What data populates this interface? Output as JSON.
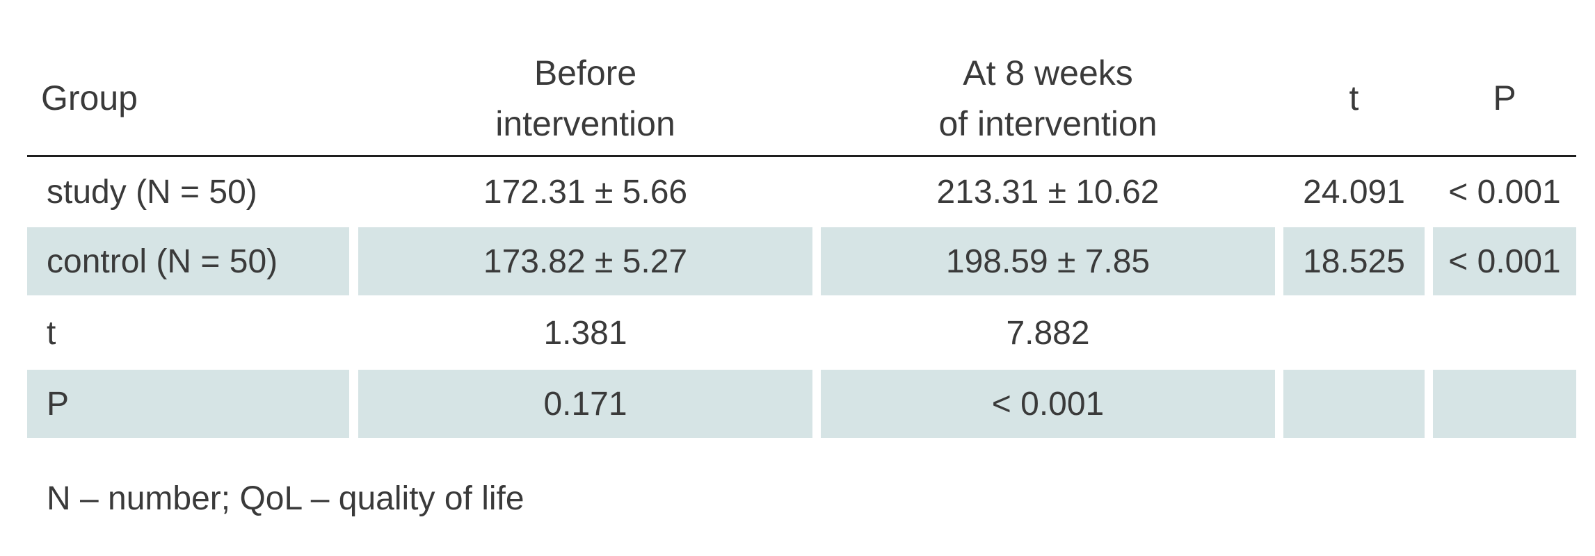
{
  "table": {
    "headers": {
      "group": "Group",
      "before_line1": "Before",
      "before_line2": "intervention",
      "at8_line1": "At 8 weeks",
      "at8_line2": "of intervention",
      "t": "t",
      "p": "P"
    },
    "rows": [
      {
        "group": "study (N = 50)",
        "before": "172.31 ± 5.66",
        "at8": "213.31 ± 10.62",
        "t": "24.091",
        "p": "< 0.001"
      },
      {
        "group": "control (N = 50)",
        "before": "173.82 ± 5.27",
        "at8": "198.59 ± 7.85",
        "t": "18.525",
        "p": "< 0.001"
      },
      {
        "group": "t",
        "before": "1.381",
        "at8": "7.882",
        "t": "",
        "p": ""
      },
      {
        "group": "P",
        "before": "0.171",
        "at8": "< 0.001",
        "t": "",
        "p": ""
      }
    ]
  },
  "footnote": "N – number; QoL – quality of life",
  "colors": {
    "row_shade": "#d6e4e5",
    "text": "#3a3a3a",
    "rule": "#1e1e1e"
  }
}
